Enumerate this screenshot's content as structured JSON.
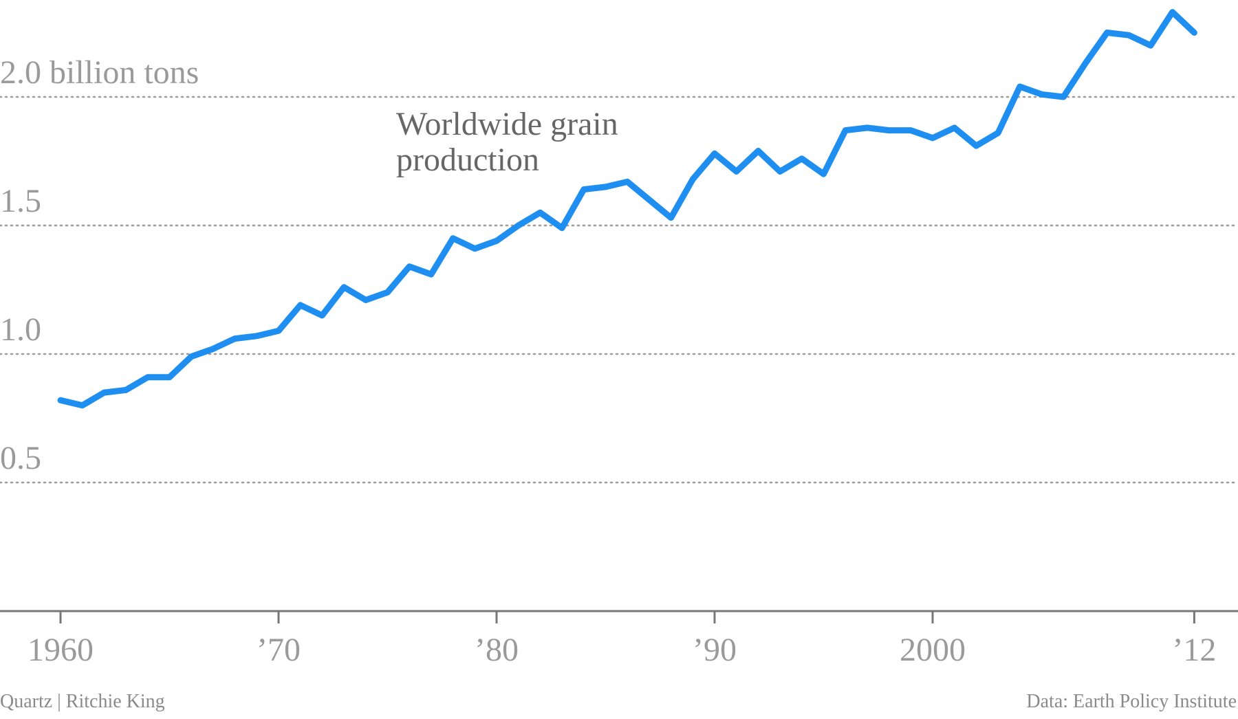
{
  "chart_data": {
    "type": "line",
    "title": "",
    "annotation": [
      "Worldwide grain",
      "production"
    ],
    "xlabel": "",
    "ylabel": "",
    "xlim": [
      1960,
      2013.5
    ],
    "ylim": [
      0,
      2.15
    ],
    "grid": true,
    "legend": "none",
    "y_ticks": [
      {
        "value": 0.5,
        "label": "0.5"
      },
      {
        "value": 1.0,
        "label": "1.0"
      },
      {
        "value": 1.5,
        "label": "1.5"
      },
      {
        "value": 2.0,
        "label": "2.0 billion tons"
      }
    ],
    "x_ticks": [
      {
        "value": 1960,
        "label": "1960"
      },
      {
        "value": 1970,
        "label": "’70"
      },
      {
        "value": 1980,
        "label": "’80"
      },
      {
        "value": 1990,
        "label": "’90"
      },
      {
        "value": 2000,
        "label": "2000"
      },
      {
        "value": 2012,
        "label": "’12"
      }
    ],
    "series": [
      {
        "color": "#1f8ef1",
        "x": [
          1960,
          1961,
          1962,
          1963,
          1964,
          1965,
          1966,
          1967,
          1968,
          1969,
          1970,
          1971,
          1972,
          1973,
          1974,
          1975,
          1976,
          1977,
          1978,
          1979,
          1980,
          1981,
          1982,
          1983,
          1984,
          1985,
          1986,
          1987,
          1988,
          1989,
          1990,
          1991,
          1992,
          1993,
          1994,
          1995,
          1996,
          1997,
          1998,
          1999,
          2000,
          2001,
          2002,
          2003,
          2004,
          2005,
          2006,
          2007,
          2008,
          2009,
          2010,
          2011,
          2012
        ],
        "y": [
          0.82,
          0.8,
          0.85,
          0.86,
          0.91,
          0.91,
          0.99,
          1.02,
          1.06,
          1.07,
          1.09,
          1.19,
          1.15,
          1.26,
          1.21,
          1.24,
          1.34,
          1.31,
          1.45,
          1.41,
          1.44,
          1.5,
          1.55,
          1.49,
          1.64,
          1.65,
          1.67,
          1.6,
          1.53,
          1.68,
          1.78,
          1.71,
          1.79,
          1.71,
          1.76,
          1.7,
          1.87,
          1.88,
          1.87,
          1.87,
          1.84,
          1.88,
          1.81,
          1.86,
          2.04,
          2.01,
          2.0,
          2.13,
          2.25,
          2.24,
          2.2,
          2.33,
          2.25
        ]
      }
    ]
  },
  "footer": {
    "credit": "Quartz | Ritchie King",
    "source": "Data: Earth Policy Institute"
  }
}
